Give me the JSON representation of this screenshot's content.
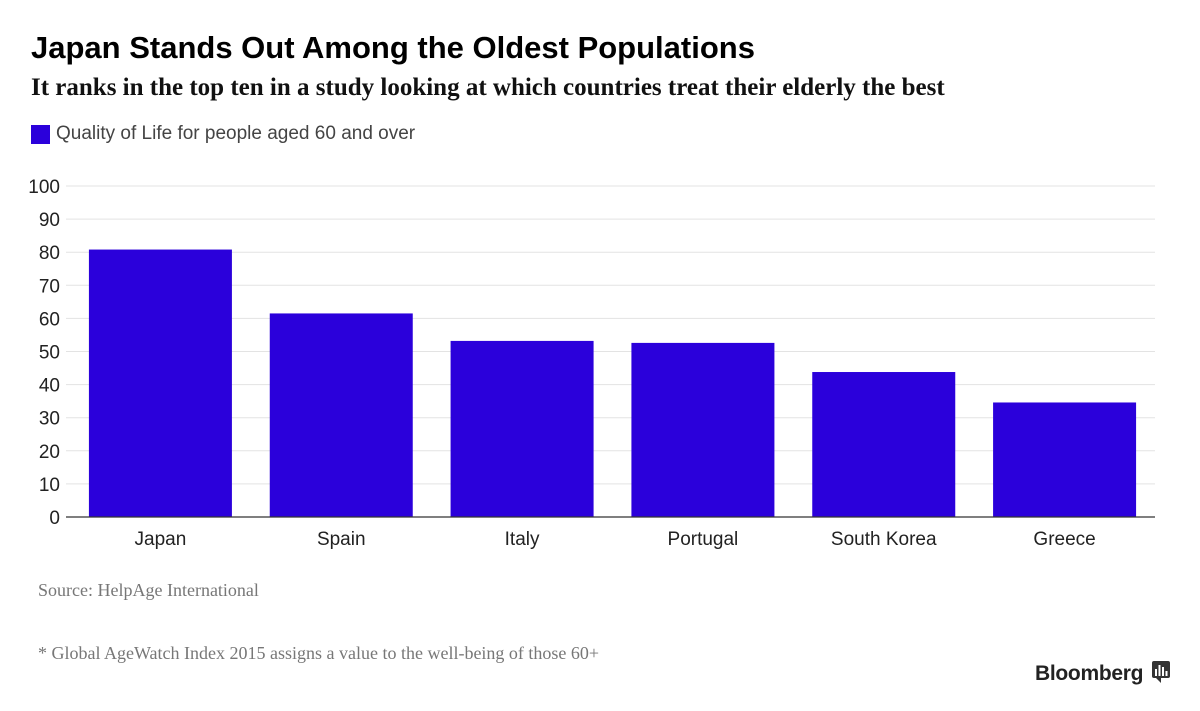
{
  "chart_data": {
    "type": "bar",
    "title": "Japan Stands Out Among the Oldest Populations",
    "subtitle": "It ranks in the top ten in a study looking at which countries treat their elderly the best",
    "categories": [
      "Japan",
      "Spain",
      "Italy",
      "Portugal",
      "South Korea",
      "Greece"
    ],
    "series": [
      {
        "name": "Quality of Life for people aged 60 and over",
        "values": [
          80.8,
          61.5,
          53.2,
          52.6,
          43.8,
          34.6
        ],
        "color": "#2b00db"
      }
    ],
    "ylim": [
      0,
      100
    ],
    "yticks": [
      "0",
      "10",
      "20",
      "30",
      "40",
      "50",
      "60",
      "70",
      "80",
      "90",
      "100"
    ],
    "ytick_values": [
      0,
      10,
      20,
      30,
      40,
      50,
      60,
      70,
      80,
      90,
      100
    ],
    "grid": true,
    "legend": "top-left"
  },
  "source": "Source: HelpAge International",
  "footnote": "* Global AgeWatch Index 2015 assigns a value to the well-being of those 60+",
  "brand": "Bloomberg",
  "colors": {
    "bar": "#2b00db",
    "grid": "#e3e3e3",
    "axis": "#333333",
    "tick_text": "#222222"
  }
}
